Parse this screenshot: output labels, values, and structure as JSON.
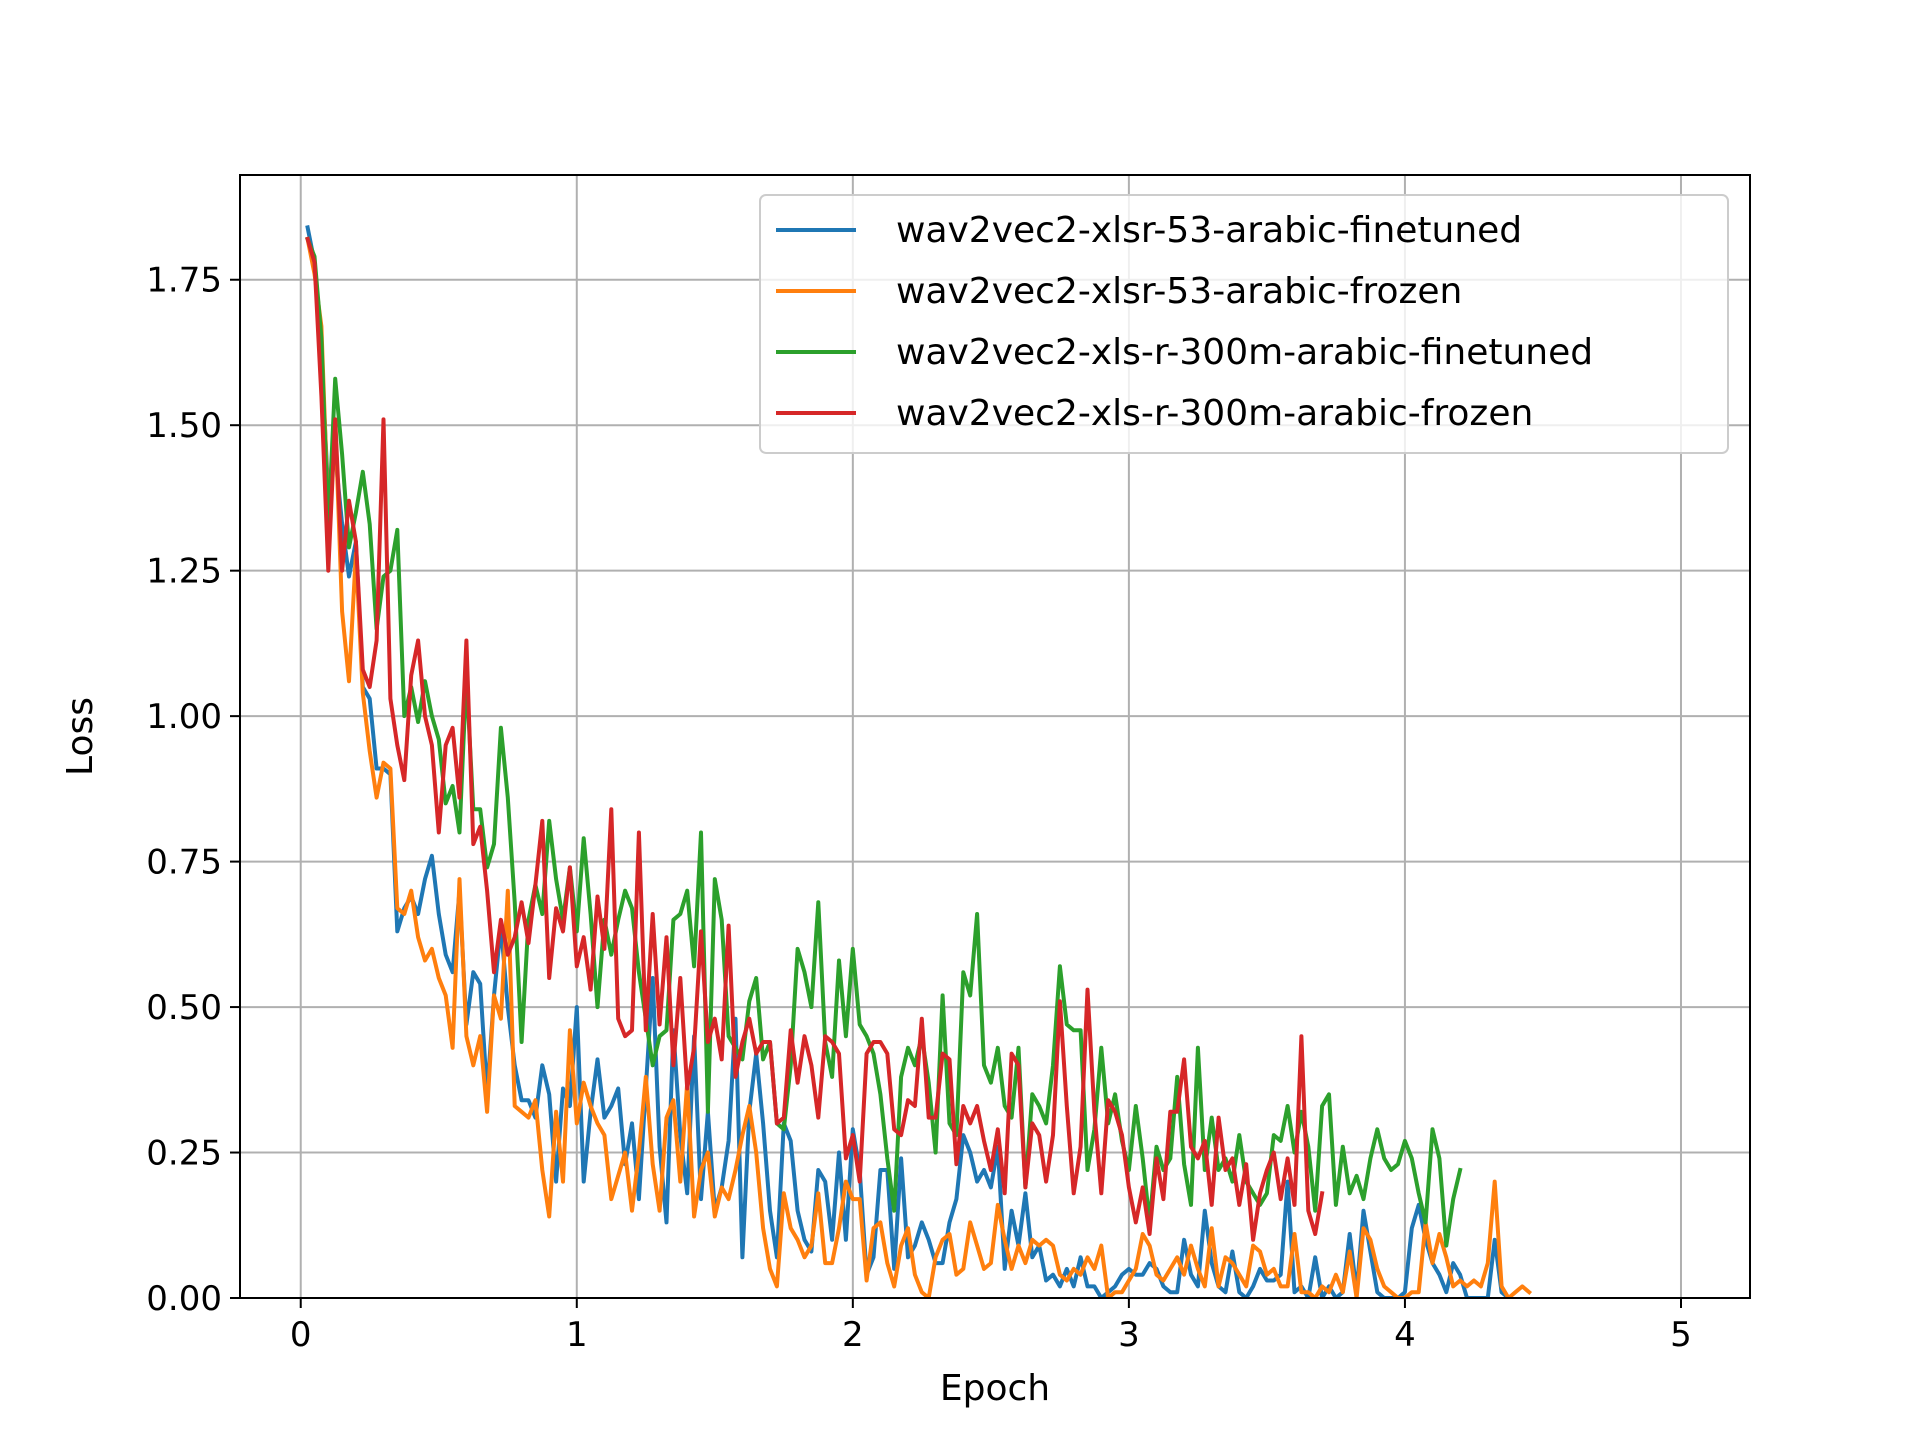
{
  "chart_data": {
    "type": "line",
    "title": "",
    "xlabel": "Epoch",
    "ylabel": "Loss",
    "xlim": [
      -0.22,
      5.25
    ],
    "ylim": [
      0,
      1.93
    ],
    "xticks": [
      0,
      1,
      2,
      3,
      4,
      5
    ],
    "xtick_labels": [
      "0",
      "1",
      "2",
      "3",
      "4",
      "5"
    ],
    "yticks": [
      0,
      0.25,
      0.5,
      0.75,
      1.0,
      1.25,
      1.5,
      1.75
    ],
    "ytick_labels": [
      "0.00",
      "0.25",
      "0.50",
      "0.75",
      "1.00",
      "1.25",
      "1.50",
      "1.75"
    ],
    "grid": true,
    "legend_position": "top-right",
    "x_start": 0.025,
    "x_step": 0.025,
    "series": [
      {
        "name": "wav2vec2-xlsr-53-arabic-finetuned",
        "color": "#1f77b4",
        "values": [
          1.84,
          1.78,
          1.62,
          1.38,
          1.45,
          1.33,
          1.24,
          1.3,
          1.05,
          1.03,
          0.91,
          0.91,
          0.9,
          0.63,
          0.67,
          0.69,
          0.66,
          0.72,
          0.76,
          0.66,
          0.59,
          0.56,
          0.7,
          0.47,
          0.56,
          0.54,
          0.35,
          0.52,
          0.64,
          0.5,
          0.4,
          0.34,
          0.34,
          0.31,
          0.4,
          0.35,
          0.2,
          0.36,
          0.33,
          0.5,
          0.2,
          0.32,
          0.41,
          0.31,
          0.33,
          0.36,
          0.23,
          0.3,
          0.17,
          0.36,
          0.55,
          0.26,
          0.13,
          0.46,
          0.28,
          0.18,
          0.45,
          0.17,
          0.32,
          0.15,
          0.19,
          0.27,
          0.48,
          0.07,
          0.32,
          0.42,
          0.3,
          0.15,
          0.07,
          0.3,
          0.27,
          0.15,
          0.1,
          0.08,
          0.22,
          0.2,
          0.1,
          0.25,
          0.1,
          0.29,
          0.22,
          0.04,
          0.07,
          0.22,
          0.22,
          0.05,
          0.24,
          0.07,
          0.09,
          0.13,
          0.1,
          0.06,
          0.06,
          0.13,
          0.17,
          0.28,
          0.25,
          0.2,
          0.22,
          0.19,
          0.26,
          0.05,
          0.15,
          0.09,
          0.18,
          0.07,
          0.09,
          0.03,
          0.04,
          0.02,
          0.05,
          0.02,
          0.07,
          0.02,
          0.02,
          0.0,
          0.01,
          0.02,
          0.04,
          0.05,
          0.04,
          0.04,
          0.06,
          0.05,
          0.02,
          0.01,
          0.01,
          0.1,
          0.04,
          0.02,
          0.15,
          0.06,
          0.02,
          0.01,
          0.08,
          0.01,
          0.0,
          0.02,
          0.05,
          0.03,
          0.03,
          0.04,
          0.2,
          0.01,
          0.02,
          0.0,
          0.07,
          0.0,
          0.02,
          0.0,
          0.01,
          0.11,
          0.01,
          0.15,
          0.08,
          0.01,
          0.0,
          0.0,
          0.0,
          0.01,
          0.12,
          0.16,
          0.1,
          0.06,
          0.04,
          0.01,
          0.06,
          0.04,
          0.0,
          0.0,
          0.0,
          0.0,
          0.1,
          0.01,
          0.0
        ]
      },
      {
        "name": "wav2vec2-xlsr-53-arabic-frozen",
        "color": "#ff7f0e",
        "values": [
          1.82,
          1.76,
          1.67,
          1.34,
          1.51,
          1.18,
          1.06,
          1.28,
          1.04,
          0.94,
          0.86,
          0.92,
          0.91,
          0.67,
          0.66,
          0.7,
          0.62,
          0.58,
          0.6,
          0.55,
          0.52,
          0.43,
          0.72,
          0.45,
          0.4,
          0.45,
          0.32,
          0.52,
          0.48,
          0.7,
          0.33,
          0.32,
          0.31,
          0.34,
          0.22,
          0.14,
          0.32,
          0.2,
          0.46,
          0.3,
          0.37,
          0.33,
          0.3,
          0.28,
          0.17,
          0.21,
          0.25,
          0.15,
          0.25,
          0.38,
          0.23,
          0.15,
          0.31,
          0.34,
          0.2,
          0.37,
          0.14,
          0.22,
          0.25,
          0.14,
          0.19,
          0.17,
          0.22,
          0.28,
          0.33,
          0.25,
          0.12,
          0.05,
          0.02,
          0.18,
          0.12,
          0.1,
          0.07,
          0.09,
          0.18,
          0.06,
          0.06,
          0.12,
          0.2,
          0.17,
          0.17,
          0.03,
          0.12,
          0.13,
          0.06,
          0.02,
          0.09,
          0.12,
          0.04,
          0.01,
          0.0,
          0.07,
          0.1,
          0.11,
          0.04,
          0.05,
          0.13,
          0.09,
          0.05,
          0.06,
          0.16,
          0.1,
          0.05,
          0.09,
          0.06,
          0.1,
          0.09,
          0.1,
          0.09,
          0.04,
          0.03,
          0.05,
          0.04,
          0.07,
          0.05,
          0.09,
          0.0,
          0.01,
          0.01,
          0.03,
          0.05,
          0.11,
          0.09,
          0.04,
          0.03,
          0.05,
          0.07,
          0.04,
          0.09,
          0.05,
          0.02,
          0.12,
          0.02,
          0.07,
          0.06,
          0.04,
          0.02,
          0.09,
          0.08,
          0.04,
          0.05,
          0.02,
          0.02,
          0.11,
          0.01,
          0.01,
          0.0,
          0.02,
          0.01,
          0.04,
          0.01,
          0.08,
          0.0,
          0.12,
          0.1,
          0.05,
          0.02,
          0.01,
          0.0,
          0.0,
          0.01,
          0.01,
          0.13,
          0.06,
          0.11,
          0.07,
          0.02,
          0.03,
          0.02,
          0.03,
          0.02,
          0.06,
          0.2,
          0.02,
          0.0,
          0.01,
          0.02,
          0.01
        ]
      },
      {
        "name": "wav2vec2-xls-r-300m-arabic-finetuned",
        "color": "#2ca02c",
        "values": [
          1.82,
          1.79,
          1.65,
          1.32,
          1.58,
          1.45,
          1.29,
          1.35,
          1.42,
          1.33,
          1.15,
          1.24,
          1.25,
          1.32,
          1.0,
          1.05,
          0.99,
          1.06,
          1.0,
          0.96,
          0.85,
          0.88,
          0.8,
          1.07,
          0.84,
          0.84,
          0.74,
          0.78,
          0.98,
          0.86,
          0.68,
          0.44,
          0.65,
          0.71,
          0.66,
          0.82,
          0.72,
          0.65,
          0.74,
          0.63,
          0.79,
          0.66,
          0.5,
          0.65,
          0.59,
          0.65,
          0.7,
          0.67,
          0.56,
          0.48,
          0.4,
          0.45,
          0.46,
          0.65,
          0.66,
          0.7,
          0.57,
          0.8,
          0.32,
          0.72,
          0.65,
          0.45,
          0.43,
          0.41,
          0.51,
          0.55,
          0.41,
          0.44,
          0.3,
          0.29,
          0.4,
          0.6,
          0.56,
          0.5,
          0.68,
          0.44,
          0.38,
          0.58,
          0.45,
          0.6,
          0.47,
          0.45,
          0.42,
          0.35,
          0.24,
          0.15,
          0.38,
          0.43,
          0.4,
          0.45,
          0.37,
          0.25,
          0.52,
          0.3,
          0.28,
          0.56,
          0.52,
          0.66,
          0.4,
          0.37,
          0.43,
          0.33,
          0.31,
          0.43,
          0.19,
          0.35,
          0.33,
          0.3,
          0.4,
          0.57,
          0.47,
          0.46,
          0.46,
          0.22,
          0.29,
          0.43,
          0.3,
          0.35,
          0.27,
          0.22,
          0.33,
          0.24,
          0.13,
          0.26,
          0.22,
          0.24,
          0.38,
          0.23,
          0.16,
          0.43,
          0.22,
          0.31,
          0.22,
          0.24,
          0.2,
          0.28,
          0.2,
          0.18,
          0.16,
          0.18,
          0.28,
          0.27,
          0.33,
          0.25,
          0.32,
          0.26,
          0.15,
          0.33,
          0.35,
          0.16,
          0.26,
          0.18,
          0.21,
          0.17,
          0.24,
          0.29,
          0.24,
          0.22,
          0.23,
          0.27,
          0.24,
          0.18,
          0.13,
          0.29,
          0.24,
          0.09,
          0.17,
          0.22
        ]
      },
      {
        "name": "wav2vec2-xls-r-300m-arabic-frozen",
        "color": "#d62728",
        "values": [
          1.82,
          1.78,
          1.55,
          1.25,
          1.51,
          1.25,
          1.37,
          1.3,
          1.08,
          1.05,
          1.13,
          1.51,
          1.03,
          0.95,
          0.89,
          1.07,
          1.13,
          1.0,
          0.95,
          0.8,
          0.95,
          0.98,
          0.86,
          1.13,
          0.78,
          0.81,
          0.7,
          0.56,
          0.65,
          0.59,
          0.62,
          0.68,
          0.61,
          0.71,
          0.82,
          0.55,
          0.67,
          0.63,
          0.74,
          0.57,
          0.62,
          0.53,
          0.69,
          0.6,
          0.84,
          0.48,
          0.45,
          0.46,
          0.8,
          0.46,
          0.66,
          0.47,
          0.62,
          0.4,
          0.55,
          0.36,
          0.43,
          0.63,
          0.44,
          0.48,
          0.41,
          0.64,
          0.38,
          0.44,
          0.48,
          0.42,
          0.44,
          0.44,
          0.3,
          0.31,
          0.46,
          0.37,
          0.45,
          0.4,
          0.31,
          0.45,
          0.44,
          0.42,
          0.24,
          0.28,
          0.2,
          0.42,
          0.44,
          0.44,
          0.42,
          0.29,
          0.28,
          0.34,
          0.33,
          0.48,
          0.31,
          0.31,
          0.42,
          0.41,
          0.23,
          0.33,
          0.3,
          0.33,
          0.27,
          0.22,
          0.29,
          0.18,
          0.42,
          0.4,
          0.19,
          0.3,
          0.28,
          0.2,
          0.28,
          0.51,
          0.33,
          0.18,
          0.26,
          0.53,
          0.32,
          0.18,
          0.34,
          0.32,
          0.28,
          0.19,
          0.13,
          0.19,
          0.11,
          0.24,
          0.17,
          0.32,
          0.32,
          0.41,
          0.26,
          0.24,
          0.27,
          0.16,
          0.31,
          0.22,
          0.24,
          0.16,
          0.23,
          0.1,
          0.18,
          0.22,
          0.25,
          0.17,
          0.24,
          0.16,
          0.45,
          0.15,
          0.11,
          0.18
        ]
      }
    ]
  }
}
